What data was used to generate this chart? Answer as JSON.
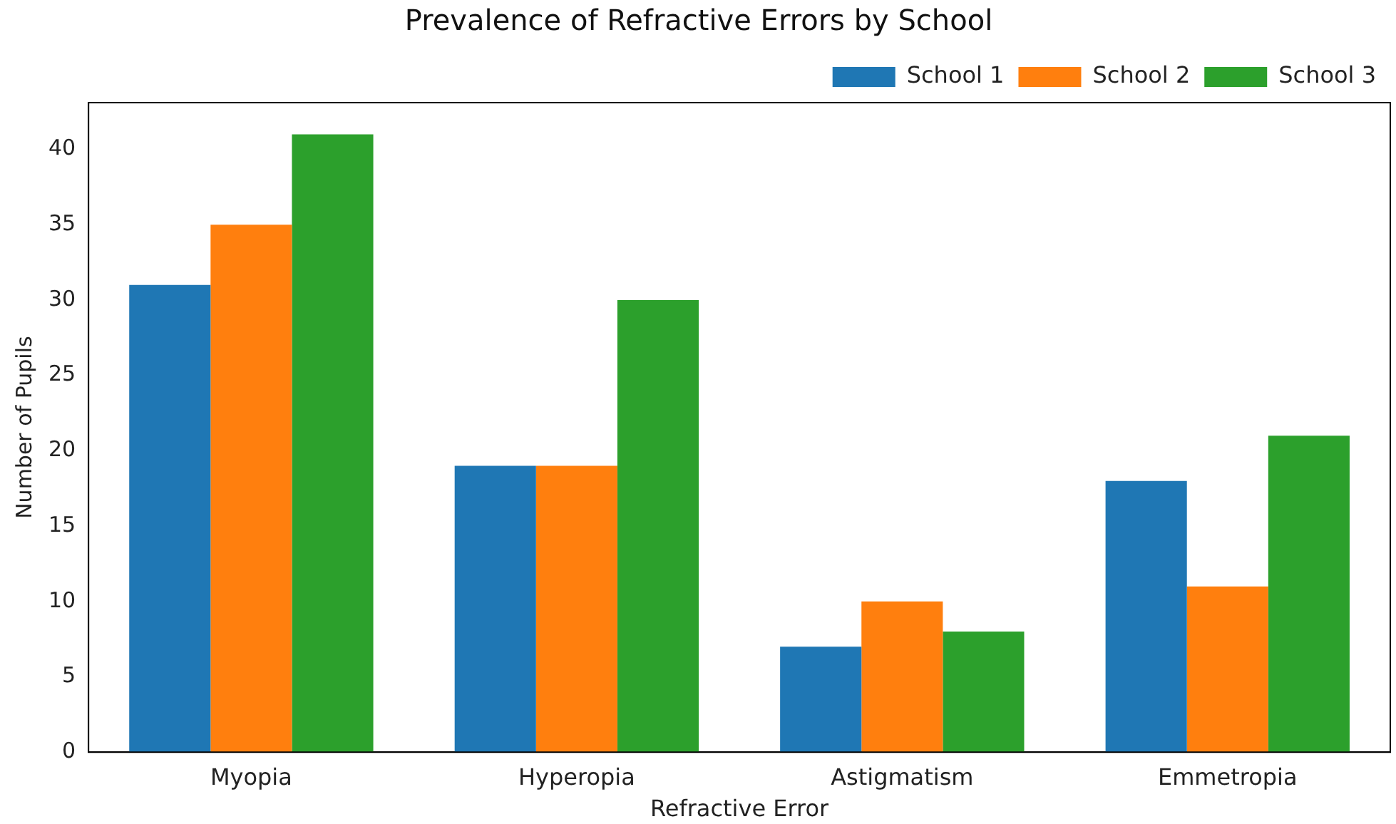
{
  "chart_data": {
    "type": "bar",
    "title": "Prevalence of Refractive Errors by School",
    "xlabel": "Refractive Error",
    "ylabel": "Number of Pupils",
    "categories": [
      "Myopia",
      "Hyperopia",
      "Astigmatism",
      "Emmetropia"
    ],
    "series": [
      {
        "name": "School 1",
        "color": "#1f77b4",
        "values": [
          31,
          19,
          7,
          18
        ]
      },
      {
        "name": "School 2",
        "color": "#ff7f0e",
        "values": [
          35,
          19,
          10,
          11
        ]
      },
      {
        "name": "School 3",
        "color": "#2ca02c",
        "values": [
          41,
          30,
          8,
          21
        ]
      }
    ],
    "ylim": [
      0,
      43.1
    ],
    "yticks": [
      0,
      5,
      10,
      15,
      20,
      25,
      30,
      35,
      40
    ],
    "grid": false,
    "legend": "top right"
  }
}
